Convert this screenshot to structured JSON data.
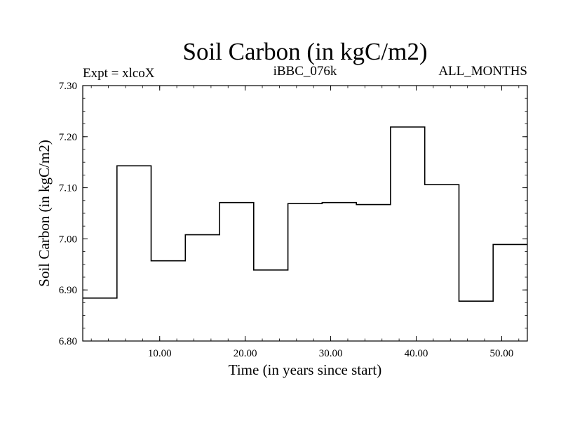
{
  "chart_data": {
    "type": "line",
    "style": "step",
    "title": "Soil Carbon (in kgC/m2)",
    "header_left": "Expt = xlcoX",
    "header_center": "iBBC_076k",
    "header_right": "ALL_MONTHS",
    "xlabel": "Time (in years since start)",
    "ylabel": "Soil Carbon (in kgC/m2)",
    "xlim": [
      1,
      53
    ],
    "ylim": [
      6.8,
      7.3
    ],
    "x_ticks": [
      10,
      20,
      30,
      40,
      50
    ],
    "x_tick_labels": [
      "10.00",
      "20.00",
      "30.00",
      "40.00",
      "50.00"
    ],
    "y_ticks": [
      6.8,
      6.9,
      7.0,
      7.1,
      7.2,
      7.3
    ],
    "y_tick_labels": [
      "6.80",
      "6.90",
      "7.00",
      "7.10",
      "7.20",
      "7.30"
    ],
    "grid": false,
    "series": [
      {
        "steps": [
          {
            "x_start": 1,
            "x_end": 5,
            "y": 6.884
          },
          {
            "x_start": 5,
            "x_end": 9,
            "y": 7.143
          },
          {
            "x_start": 9,
            "x_end": 13,
            "y": 6.957
          },
          {
            "x_start": 13,
            "x_end": 17,
            "y": 7.008
          },
          {
            "x_start": 17,
            "x_end": 21,
            "y": 7.071
          },
          {
            "x_start": 21,
            "x_end": 25,
            "y": 6.939
          },
          {
            "x_start": 25,
            "x_end": 29,
            "y": 7.069
          },
          {
            "x_start": 29,
            "x_end": 33,
            "y": 7.071
          },
          {
            "x_start": 33,
            "x_end": 37,
            "y": 7.067
          },
          {
            "x_start": 37,
            "x_end": 41,
            "y": 7.219
          },
          {
            "x_start": 41,
            "x_end": 45,
            "y": 7.106
          },
          {
            "x_start": 45,
            "x_end": 49,
            "y": 6.878
          },
          {
            "x_start": 49,
            "x_end": 53,
            "y": 6.989
          }
        ],
        "color": "#000000"
      }
    ]
  }
}
